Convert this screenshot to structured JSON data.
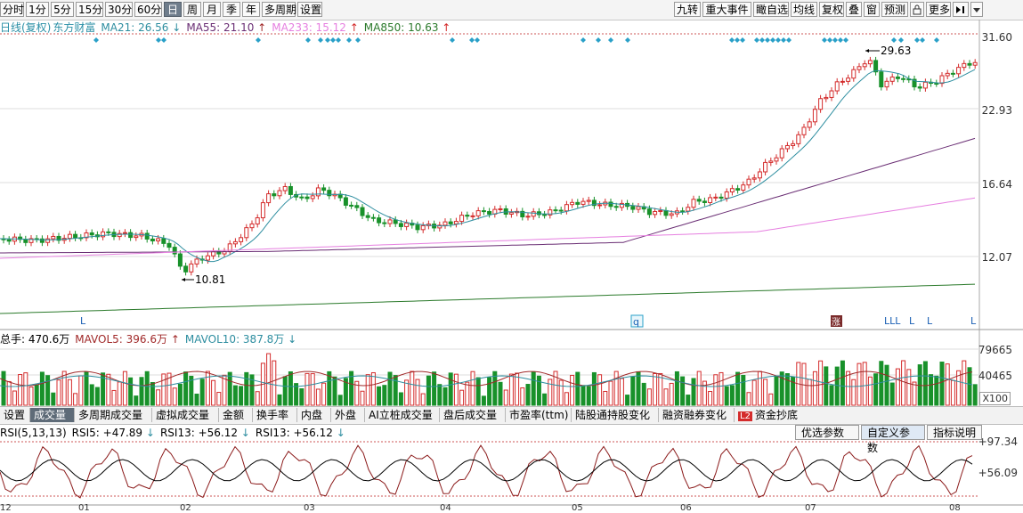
{
  "toolbar": {
    "periods": [
      "分时",
      "1分",
      "5分",
      "15分",
      "30分",
      "60分",
      "日",
      "周",
      "月",
      "季",
      "年",
      "多周期",
      "设置"
    ],
    "active_period": "日",
    "right_items": [
      "九转",
      "重大事件",
      "瞰自选",
      "均线",
      "复权",
      "叠",
      "窗",
      "预测",
      "",
      "更多",
      "",
      ""
    ]
  },
  "legend": {
    "title": "日线(复权)",
    "stock": "东方财富",
    "ma21": "MA21: 26.56",
    "ma55": "MA55: 21.10",
    "ma233": "MA233: 15.12",
    "ma850": "MA850: 10.63"
  },
  "price_axis": [
    "31.60",
    "22.93",
    "16.64",
    "12.07"
  ],
  "annotations": {
    "high": "29.63",
    "low": "10.81",
    "markers": [
      "L",
      "q",
      "涨",
      "LLL",
      "L",
      "L",
      "L"
    ]
  },
  "volume": {
    "legend": "总手: 470.6万",
    "mavol5": "MAVOL5: 396.6万",
    "mavol10": "MAVOL10: 387.8万",
    "axis": [
      "79665",
      "40465",
      "X100"
    ]
  },
  "subtabs": [
    "设置",
    "成交量",
    "多周期成交量",
    "虚拟成交量",
    "金额",
    "换手率",
    "内盘",
    "外盘",
    "AI立桩成交量",
    "盘后成交量",
    "市盈率(ttm)",
    "陆股通持股变化",
    "融资融券变化",
    "资金抄底"
  ],
  "rsi": {
    "legend": "RSI(5,13,13)",
    "rsi5": "RSI5: +47.89",
    "rsi13a": "RSI13: +56.12",
    "rsi13b": "RSI13: +56.12",
    "buttons": [
      "优选参数",
      "自定义参数",
      "指标说明"
    ],
    "axis": [
      "+97.34",
      "+56.09"
    ]
  },
  "x_axis": [
    "12",
    "01",
    "02",
    "03",
    "04",
    "05",
    "06",
    "07",
    "08"
  ],
  "colors": {
    "up": "#d42c2c",
    "down": "#18912a",
    "ma21": "#2e8ea0",
    "ma55": "#6a2e74",
    "ma233": "#e67fe0",
    "ma850": "#2b7a2b",
    "accent": "#2aa0c8"
  }
}
